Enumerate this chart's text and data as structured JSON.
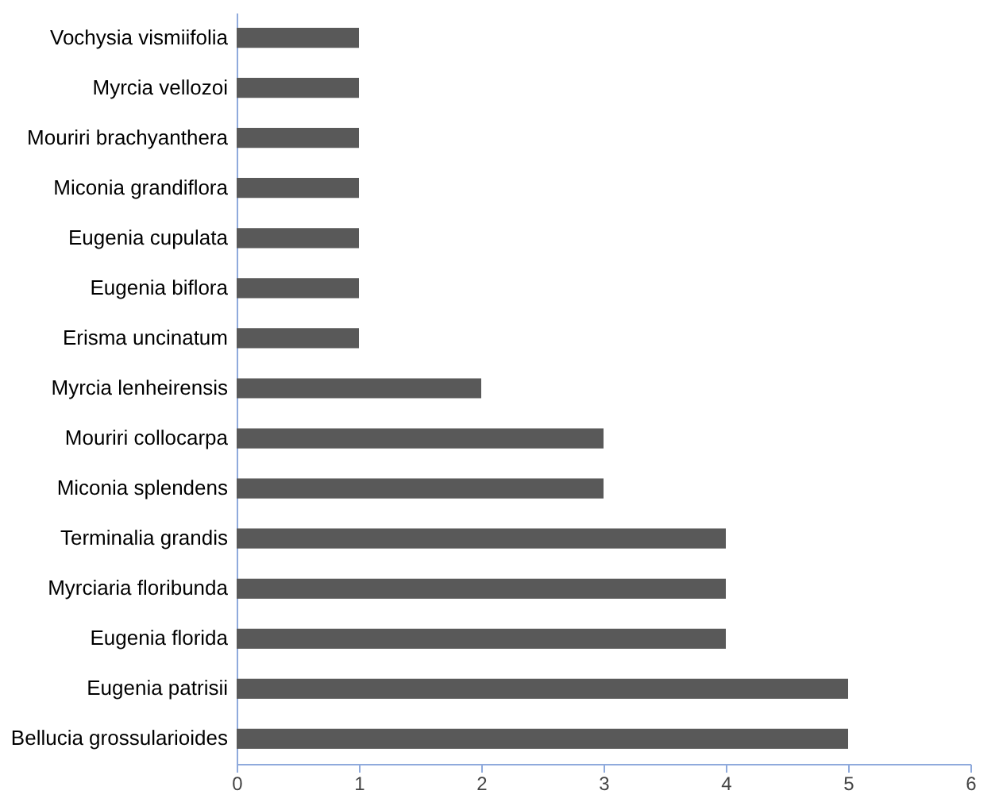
{
  "chart_data": {
    "type": "bar",
    "orientation": "horizontal",
    "categories": [
      "Vochysia vismiifolia",
      "Myrcia vellozoi",
      "Mouriri brachyanthera",
      "Miconia grandiflora",
      "Eugenia cupulata",
      "Eugenia biflora",
      "Erisma uncinatum",
      "Myrcia lenheirensis",
      "Mouriri collocarpa",
      "Miconia splendens",
      "Terminalia grandis",
      "Myrciaria floribunda",
      "Eugenia florida",
      "Eugenia patrisii",
      "Bellucia grossularioides"
    ],
    "values": [
      1,
      1,
      1,
      1,
      1,
      1,
      1,
      2,
      3,
      3,
      4,
      4,
      4,
      5,
      5
    ],
    "color": "#595959",
    "xlim": [
      0,
      6
    ],
    "xticks": [
      0,
      1,
      2,
      3,
      4,
      5,
      6
    ],
    "grid": false
  }
}
